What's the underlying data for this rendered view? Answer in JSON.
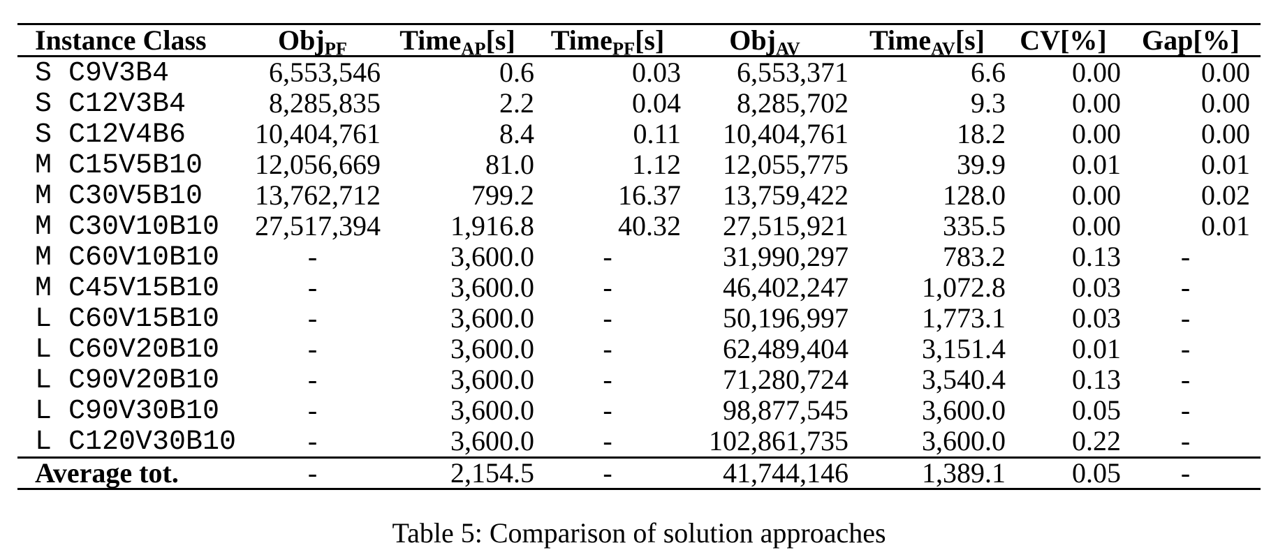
{
  "page": {
    "background_color": "#ffffff",
    "text_color": "#000000"
  },
  "caption": "Table 5: Comparison of solution approaches",
  "table": {
    "columns": [
      {
        "base": "Instance Class",
        "sub": "",
        "unit": ""
      },
      {
        "base": "Obj",
        "sub": "PF",
        "unit": ""
      },
      {
        "base": "Time",
        "sub": "AP",
        "unit": "[s]"
      },
      {
        "base": "Time",
        "sub": "PF",
        "unit": "[s]"
      },
      {
        "base": "Obj",
        "sub": "AV",
        "unit": ""
      },
      {
        "base": "Time",
        "sub": "AV",
        "unit": "[s]"
      },
      {
        "base": "CV",
        "sub": "",
        "unit": "[%]"
      },
      {
        "base": "Gap",
        "sub": "",
        "unit": "[%]"
      }
    ],
    "rows": [
      {
        "size": "S",
        "name": "C9V3B4",
        "values": [
          "6,553,546",
          "0.6",
          "0.03",
          "6,553,371",
          "6.6",
          "0.00",
          "0.00"
        ]
      },
      {
        "size": "S",
        "name": "C12V3B4",
        "values": [
          "8,285,835",
          "2.2",
          "0.04",
          "8,285,702",
          "9.3",
          "0.00",
          "0.00"
        ]
      },
      {
        "size": "S",
        "name": "C12V4B6",
        "values": [
          "10,404,761",
          "8.4",
          "0.11",
          "10,404,761",
          "18.2",
          "0.00",
          "0.00"
        ]
      },
      {
        "size": "M",
        "name": "C15V5B10",
        "values": [
          "12,056,669",
          "81.0",
          "1.12",
          "12,055,775",
          "39.9",
          "0.01",
          "0.01"
        ]
      },
      {
        "size": "M",
        "name": "C30V5B10",
        "values": [
          "13,762,712",
          "799.2",
          "16.37",
          "13,759,422",
          "128.0",
          "0.00",
          "0.02"
        ]
      },
      {
        "size": "M",
        "name": "C30V10B10",
        "values": [
          "27,517,394",
          "1,916.8",
          "40.32",
          "27,515,921",
          "335.5",
          "0.00",
          "0.01"
        ]
      },
      {
        "size": "M",
        "name": "C60V10B10",
        "values": [
          "-",
          "3,600.0",
          "-",
          "31,990,297",
          "783.2",
          "0.13",
          "-"
        ]
      },
      {
        "size": "M",
        "name": "C45V15B10",
        "values": [
          "-",
          "3,600.0",
          "-",
          "46,402,247",
          "1,072.8",
          "0.03",
          "-"
        ]
      },
      {
        "size": "L",
        "name": "C60V15B10",
        "values": [
          "-",
          "3,600.0",
          "-",
          "50,196,997",
          "1,773.1",
          "0.03",
          "-"
        ]
      },
      {
        "size": "L",
        "name": "C60V20B10",
        "values": [
          "-",
          "3,600.0",
          "-",
          "62,489,404",
          "3,151.4",
          "0.01",
          "-"
        ]
      },
      {
        "size": "L",
        "name": "C90V20B10",
        "values": [
          "-",
          "3,600.0",
          "-",
          "71,280,724",
          "3,540.4",
          "0.13",
          "-"
        ]
      },
      {
        "size": "L",
        "name": "C90V30B10",
        "values": [
          "-",
          "3,600.0",
          "-",
          "98,877,545",
          "3,600.0",
          "0.05",
          "-"
        ]
      },
      {
        "size": "L",
        "name": "C120V30B10",
        "values": [
          "-",
          "3,600.0",
          "-",
          "102,861,735",
          "3,600.0",
          "0.22",
          "-"
        ]
      }
    ],
    "footer": {
      "label": "Average tot.",
      "values": [
        "-",
        "2,154.5",
        "-",
        "41,744,146",
        "1,389.1",
        "0.05",
        "-"
      ]
    }
  }
}
